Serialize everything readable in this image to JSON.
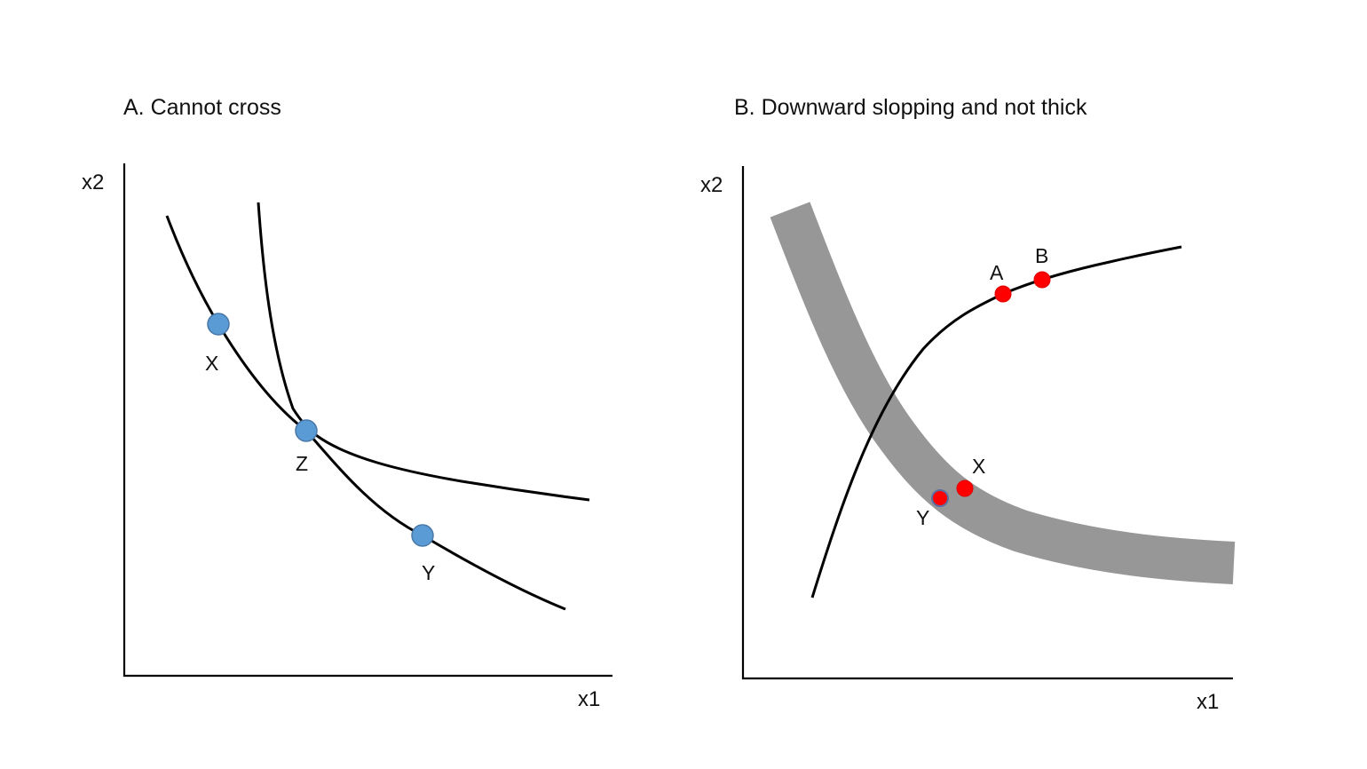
{
  "panel_a": {
    "title": "A. Cannot cross",
    "x_axis_label": "x1",
    "y_axis_label": "x2",
    "points": {
      "x_label": "X",
      "z_label": "Z",
      "y_label": "Y"
    }
  },
  "panel_b": {
    "title": "B. Downward slopping and not thick",
    "x_axis_label": "x1",
    "y_axis_label": "x2",
    "points": {
      "a_label": "A",
      "b_label": "B",
      "x_label": "X",
      "y_label": "Y"
    }
  },
  "colors": {
    "blue_dot": "#5b9bd5",
    "red_dot": "#ff0000",
    "thick_band": "#979797",
    "line": "#000000"
  }
}
